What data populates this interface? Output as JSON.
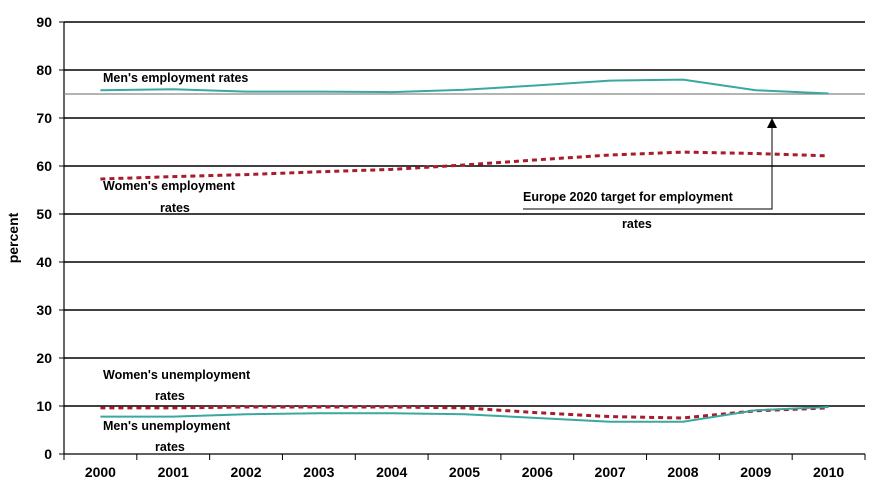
{
  "chart_data": {
    "type": "line",
    "ylabel": "percent",
    "xlabel": "",
    "ylim": [
      0,
      90
    ],
    "yticks": [
      "0",
      "10",
      "20",
      "30",
      "40",
      "50",
      "60",
      "70",
      "80",
      "90"
    ],
    "categories": [
      "2000",
      "2001",
      "2002",
      "2003",
      "2004",
      "2005",
      "2006",
      "2007",
      "2008",
      "2009",
      "2010"
    ],
    "grid": "horizontal",
    "series": [
      {
        "key": "men_emp",
        "color": "#3aa8a0",
        "style": "solid",
        "values": [
          75.8,
          76.0,
          75.5,
          75.5,
          75.4,
          75.9,
          76.8,
          77.8,
          78.0,
          75.8,
          75.1
        ]
      },
      {
        "key": "women_emp",
        "color": "#a81c2c",
        "style": "dotted",
        "values": [
          57.3,
          57.8,
          58.2,
          58.8,
          59.3,
          60.2,
          61.3,
          62.3,
          62.9,
          62.6,
          62.1
        ]
      },
      {
        "key": "women_unemp",
        "color": "#a81c2c",
        "style": "dotted",
        "values": [
          9.6,
          9.6,
          9.8,
          9.8,
          9.8,
          9.6,
          8.6,
          7.8,
          7.5,
          9.0,
          9.6
        ]
      },
      {
        "key": "men_unemp",
        "color": "#3aa8a0",
        "style": "solid",
        "values": [
          7.8,
          7.8,
          8.3,
          8.5,
          8.5,
          8.3,
          7.5,
          6.7,
          6.7,
          9.1,
          9.8
        ]
      }
    ],
    "target": {
      "value": 75,
      "color": "#888888"
    },
    "annotations": {
      "men_emp": [
        "Men's employment rates"
      ],
      "women_emp": [
        "Women's employment",
        "rates"
      ],
      "women_unemp": [
        "Women's unemployment",
        "rates"
      ],
      "men_unemp": [
        "Men's unemployment",
        "rates"
      ],
      "target": [
        "Europe 2020 target for employment",
        "rates"
      ]
    }
  }
}
